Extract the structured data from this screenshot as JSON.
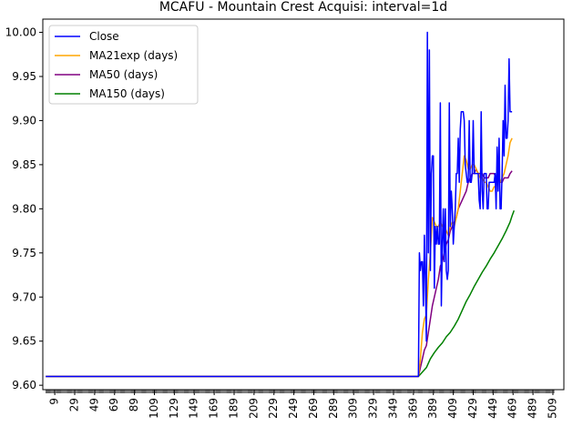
{
  "chart_data": {
    "type": "line",
    "title": "MCAFU - Mountain Crest Acquisi: interval=1d",
    "xlabel": "",
    "ylabel": "",
    "xlim": [
      -3,
      520
    ],
    "ylim": [
      9.595,
      10.015
    ],
    "x_ticks": [
      9,
      29,
      49,
      69,
      89,
      109,
      129,
      149,
      169,
      189,
      209,
      229,
      249,
      269,
      289,
      309,
      329,
      349,
      369,
      389,
      409,
      429,
      449,
      469,
      489,
      509
    ],
    "y_ticks": [
      9.6,
      9.65,
      9.7,
      9.75,
      9.8,
      9.85,
      9.9,
      9.95,
      10.0
    ],
    "y_tick_labels": [
      "9.60",
      "9.65",
      "9.70",
      "9.75",
      "9.80",
      "9.85",
      "9.90",
      "9.95",
      "10.00"
    ],
    "grid": false,
    "legend_position": "upper-left",
    "series": [
      {
        "name": "Close",
        "color": "#0000ff",
        "points": [
          [
            0,
            9.61
          ],
          [
            374,
            9.61
          ],
          [
            375,
            9.75
          ],
          [
            376,
            9.73
          ],
          [
            377,
            9.74
          ],
          [
            378,
            9.74
          ],
          [
            379,
            9.69
          ],
          [
            380,
            9.77
          ],
          [
            381,
            9.72
          ],
          [
            382,
            9.65
          ],
          [
            383,
            10.0
          ],
          [
            384,
            9.75
          ],
          [
            385,
            9.98
          ],
          [
            386,
            9.73
          ],
          [
            387,
            9.84
          ],
          [
            388,
            9.86
          ],
          [
            389,
            9.86
          ],
          [
            390,
            9.71
          ],
          [
            391,
            9.78
          ],
          [
            392,
            9.76
          ],
          [
            393,
            9.78
          ],
          [
            394,
            9.76
          ],
          [
            395,
            9.76
          ],
          [
            396,
            9.92
          ],
          [
            397,
            9.69
          ],
          [
            398,
            9.76
          ],
          [
            399,
            9.8
          ],
          [
            400,
            9.74
          ],
          [
            401,
            9.8
          ],
          [
            402,
            9.73
          ],
          [
            403,
            9.72
          ],
          [
            404,
            9.73
          ],
          [
            405,
            9.92
          ],
          [
            406,
            9.78
          ],
          [
            407,
            9.82
          ],
          [
            408,
            9.8
          ],
          [
            409,
            9.76
          ],
          [
            410,
            9.78
          ],
          [
            411,
            9.8
          ],
          [
            412,
            9.84
          ],
          [
            413,
            9.84
          ],
          [
            414,
            9.88
          ],
          [
            415,
            9.83
          ],
          [
            416,
            9.89
          ],
          [
            417,
            9.91
          ],
          [
            418,
            9.91
          ],
          [
            419,
            9.91
          ],
          [
            420,
            9.9
          ],
          [
            421,
            9.85
          ],
          [
            422,
            9.84
          ],
          [
            423,
            9.83
          ],
          [
            424,
            9.83
          ],
          [
            425,
            9.9
          ],
          [
            426,
            9.83
          ],
          [
            427,
            9.83
          ],
          [
            428,
            9.84
          ],
          [
            429,
            9.9
          ],
          [
            430,
            9.84
          ],
          [
            431,
            9.84
          ],
          [
            432,
            9.84
          ],
          [
            433,
            9.84
          ],
          [
            434,
            9.84
          ],
          [
            435,
            9.81
          ],
          [
            436,
            9.8
          ],
          [
            437,
            9.91
          ],
          [
            438,
            9.82
          ],
          [
            439,
            9.8
          ],
          [
            440,
            9.84
          ],
          [
            441,
            9.84
          ],
          [
            442,
            9.84
          ],
          [
            443,
            9.8
          ],
          [
            444,
            9.8
          ],
          [
            445,
            9.83
          ],
          [
            446,
            9.83
          ],
          [
            447,
            9.83
          ],
          [
            448,
            9.83
          ],
          [
            449,
            9.83
          ],
          [
            450,
            9.83
          ],
          [
            451,
            9.84
          ],
          [
            452,
            9.8
          ],
          [
            453,
            9.87
          ],
          [
            454,
            9.82
          ],
          [
            455,
            9.88
          ],
          [
            456,
            9.8
          ],
          [
            457,
            9.8
          ],
          [
            458,
            9.84
          ],
          [
            459,
            9.9
          ],
          [
            460,
            9.86
          ],
          [
            461,
            9.94
          ],
          [
            462,
            9.88
          ],
          [
            463,
            9.88
          ],
          [
            464,
            9.9
          ],
          [
            465,
            9.97
          ],
          [
            466,
            9.91
          ],
          [
            467,
            9.91
          ],
          [
            468,
            9.91
          ]
        ]
      },
      {
        "name": "MA21exp (days)",
        "color": "#ffa500",
        "points": [
          [
            0,
            9.61
          ],
          [
            374,
            9.61
          ],
          [
            376,
            9.63
          ],
          [
            378,
            9.66
          ],
          [
            380,
            9.675
          ],
          [
            382,
            9.68
          ],
          [
            384,
            9.72
          ],
          [
            386,
            9.75
          ],
          [
            388,
            9.79
          ],
          [
            390,
            9.785
          ],
          [
            392,
            9.78
          ],
          [
            394,
            9.78
          ],
          [
            396,
            9.785
          ],
          [
            398,
            9.78
          ],
          [
            400,
            9.78
          ],
          [
            402,
            9.775
          ],
          [
            404,
            9.77
          ],
          [
            406,
            9.78
          ],
          [
            408,
            9.785
          ],
          [
            410,
            9.78
          ],
          [
            412,
            9.79
          ],
          [
            414,
            9.8
          ],
          [
            416,
            9.82
          ],
          [
            418,
            9.84
          ],
          [
            420,
            9.86
          ],
          [
            422,
            9.855
          ],
          [
            424,
            9.845
          ],
          [
            426,
            9.845
          ],
          [
            428,
            9.85
          ],
          [
            430,
            9.85
          ],
          [
            432,
            9.845
          ],
          [
            434,
            9.84
          ],
          [
            436,
            9.835
          ],
          [
            438,
            9.835
          ],
          [
            440,
            9.83
          ],
          [
            442,
            9.83
          ],
          [
            444,
            9.825
          ],
          [
            446,
            9.82
          ],
          [
            448,
            9.82
          ],
          [
            450,
            9.825
          ],
          [
            452,
            9.825
          ],
          [
            454,
            9.835
          ],
          [
            456,
            9.83
          ],
          [
            458,
            9.835
          ],
          [
            460,
            9.84
          ],
          [
            462,
            9.85
          ],
          [
            464,
            9.86
          ],
          [
            466,
            9.875
          ],
          [
            468,
            9.88
          ]
        ]
      },
      {
        "name": "MA50 (days)",
        "color": "#800080",
        "points": [
          [
            0,
            9.61
          ],
          [
            374,
            9.61
          ],
          [
            376,
            9.62
          ],
          [
            378,
            9.63
          ],
          [
            380,
            9.64
          ],
          [
            382,
            9.645
          ],
          [
            384,
            9.66
          ],
          [
            386,
            9.675
          ],
          [
            388,
            9.69
          ],
          [
            390,
            9.7
          ],
          [
            392,
            9.71
          ],
          [
            394,
            9.72
          ],
          [
            396,
            9.735
          ],
          [
            398,
            9.74
          ],
          [
            400,
            9.75
          ],
          [
            402,
            9.76
          ],
          [
            404,
            9.765
          ],
          [
            406,
            9.775
          ],
          [
            408,
            9.78
          ],
          [
            410,
            9.785
          ],
          [
            412,
            9.79
          ],
          [
            414,
            9.8
          ],
          [
            416,
            9.805
          ],
          [
            418,
            9.81
          ],
          [
            420,
            9.815
          ],
          [
            422,
            9.82
          ],
          [
            424,
            9.83
          ],
          [
            426,
            9.835
          ],
          [
            428,
            9.84
          ],
          [
            430,
            9.84
          ],
          [
            432,
            9.845
          ],
          [
            434,
            9.84
          ],
          [
            436,
            9.84
          ],
          [
            438,
            9.84
          ],
          [
            440,
            9.835
          ],
          [
            442,
            9.835
          ],
          [
            444,
            9.835
          ],
          [
            446,
            9.84
          ],
          [
            448,
            9.84
          ],
          [
            450,
            9.84
          ],
          [
            452,
            9.835
          ],
          [
            454,
            9.835
          ],
          [
            456,
            9.83
          ],
          [
            458,
            9.83
          ],
          [
            460,
            9.835
          ],
          [
            462,
            9.835
          ],
          [
            464,
            9.835
          ],
          [
            466,
            9.84
          ],
          [
            468,
            9.843
          ]
        ]
      },
      {
        "name": "MA150 (days)",
        "color": "#008000",
        "points": [
          [
            0,
            9.61
          ],
          [
            374,
            9.61
          ],
          [
            378,
            9.615
          ],
          [
            382,
            9.62
          ],
          [
            386,
            9.63
          ],
          [
            390,
            9.637
          ],
          [
            394,
            9.643
          ],
          [
            398,
            9.648
          ],
          [
            402,
            9.655
          ],
          [
            406,
            9.66
          ],
          [
            410,
            9.667
          ],
          [
            414,
            9.675
          ],
          [
            418,
            9.685
          ],
          [
            422,
            9.695
          ],
          [
            426,
            9.703
          ],
          [
            430,
            9.712
          ],
          [
            434,
            9.72
          ],
          [
            438,
            9.728
          ],
          [
            442,
            9.735
          ],
          [
            446,
            9.743
          ],
          [
            450,
            9.75
          ],
          [
            454,
            9.758
          ],
          [
            458,
            9.766
          ],
          [
            462,
            9.775
          ],
          [
            466,
            9.785
          ],
          [
            468,
            9.792
          ],
          [
            470,
            9.798
          ]
        ]
      }
    ]
  }
}
